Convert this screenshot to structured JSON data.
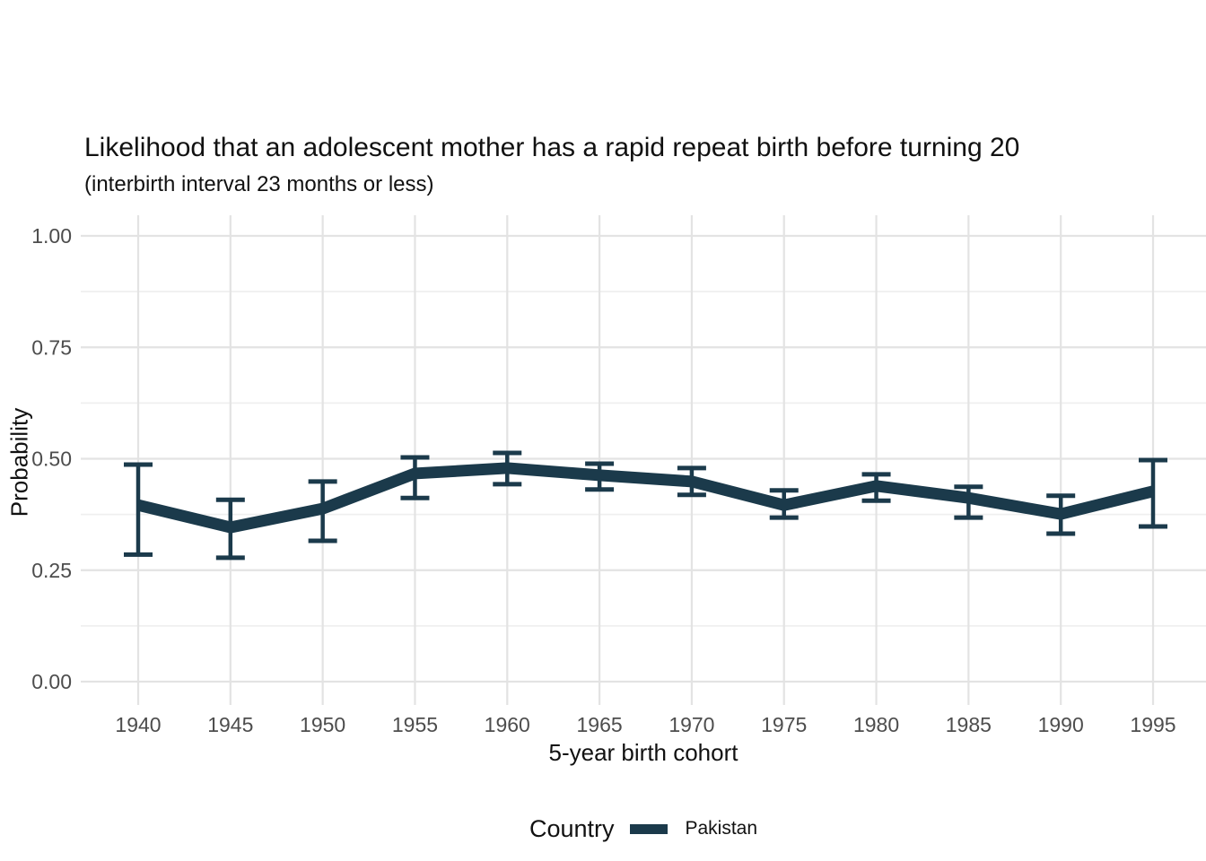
{
  "chart": {
    "title": "Likelihood that an adolescent mother has a rapid repeat birth before turning 20",
    "subtitle": "(interbirth interval 23 months or less)",
    "xlabel": "5-year birth cohort",
    "ylabel": "Probability",
    "legend": {
      "title": "Country",
      "entries": [
        {
          "label": "Pakistan",
          "color": "#1b3a4b"
        }
      ]
    },
    "colors": {
      "series": "#1b3a4b",
      "grid_major": "#e3e3e3",
      "grid_minor": "#efefef",
      "tick_text": "#4d4d4d",
      "background": "#ffffff"
    }
  },
  "chart_data": {
    "type": "line",
    "title": "Likelihood that an adolescent mother has a rapid repeat birth before turning 20",
    "subtitle": "(interbirth interval 23 months or less)",
    "xlabel": "5-year birth cohort",
    "ylabel": "Probability",
    "x": [
      1940,
      1945,
      1950,
      1955,
      1960,
      1965,
      1970,
      1975,
      1980,
      1985,
      1990,
      1995
    ],
    "xtick_labels": [
      "1940",
      "1945",
      "1950",
      "1955",
      "1960",
      "1965",
      "1970",
      "1975",
      "1980",
      "1985",
      "1990",
      "1995"
    ],
    "series": [
      {
        "name": "Pakistan",
        "color": "#1b3a4b",
        "values": [
          0.396,
          0.346,
          0.388,
          0.467,
          0.479,
          0.463,
          0.449,
          0.396,
          0.439,
          0.412,
          0.376,
          0.427
        ],
        "ci_low": [
          0.285,
          0.278,
          0.316,
          0.412,
          0.443,
          0.431,
          0.419,
          0.368,
          0.406,
          0.368,
          0.332,
          0.348
        ],
        "ci_high": [
          0.487,
          0.408,
          0.449,
          0.503,
          0.513,
          0.489,
          0.479,
          0.429,
          0.465,
          0.437,
          0.417,
          0.497
        ]
      }
    ],
    "ylim": [
      0,
      1
    ],
    "yticks": [
      0,
      0.25,
      0.5,
      0.75,
      1.0
    ],
    "ytick_labels": [
      "0.00",
      "0.25",
      "0.50",
      "0.75",
      "1.00"
    ],
    "grid": "horizontal major+minor, vertical major only",
    "error_bars": true,
    "legend_position": "bottom",
    "legend_title": "Country"
  }
}
